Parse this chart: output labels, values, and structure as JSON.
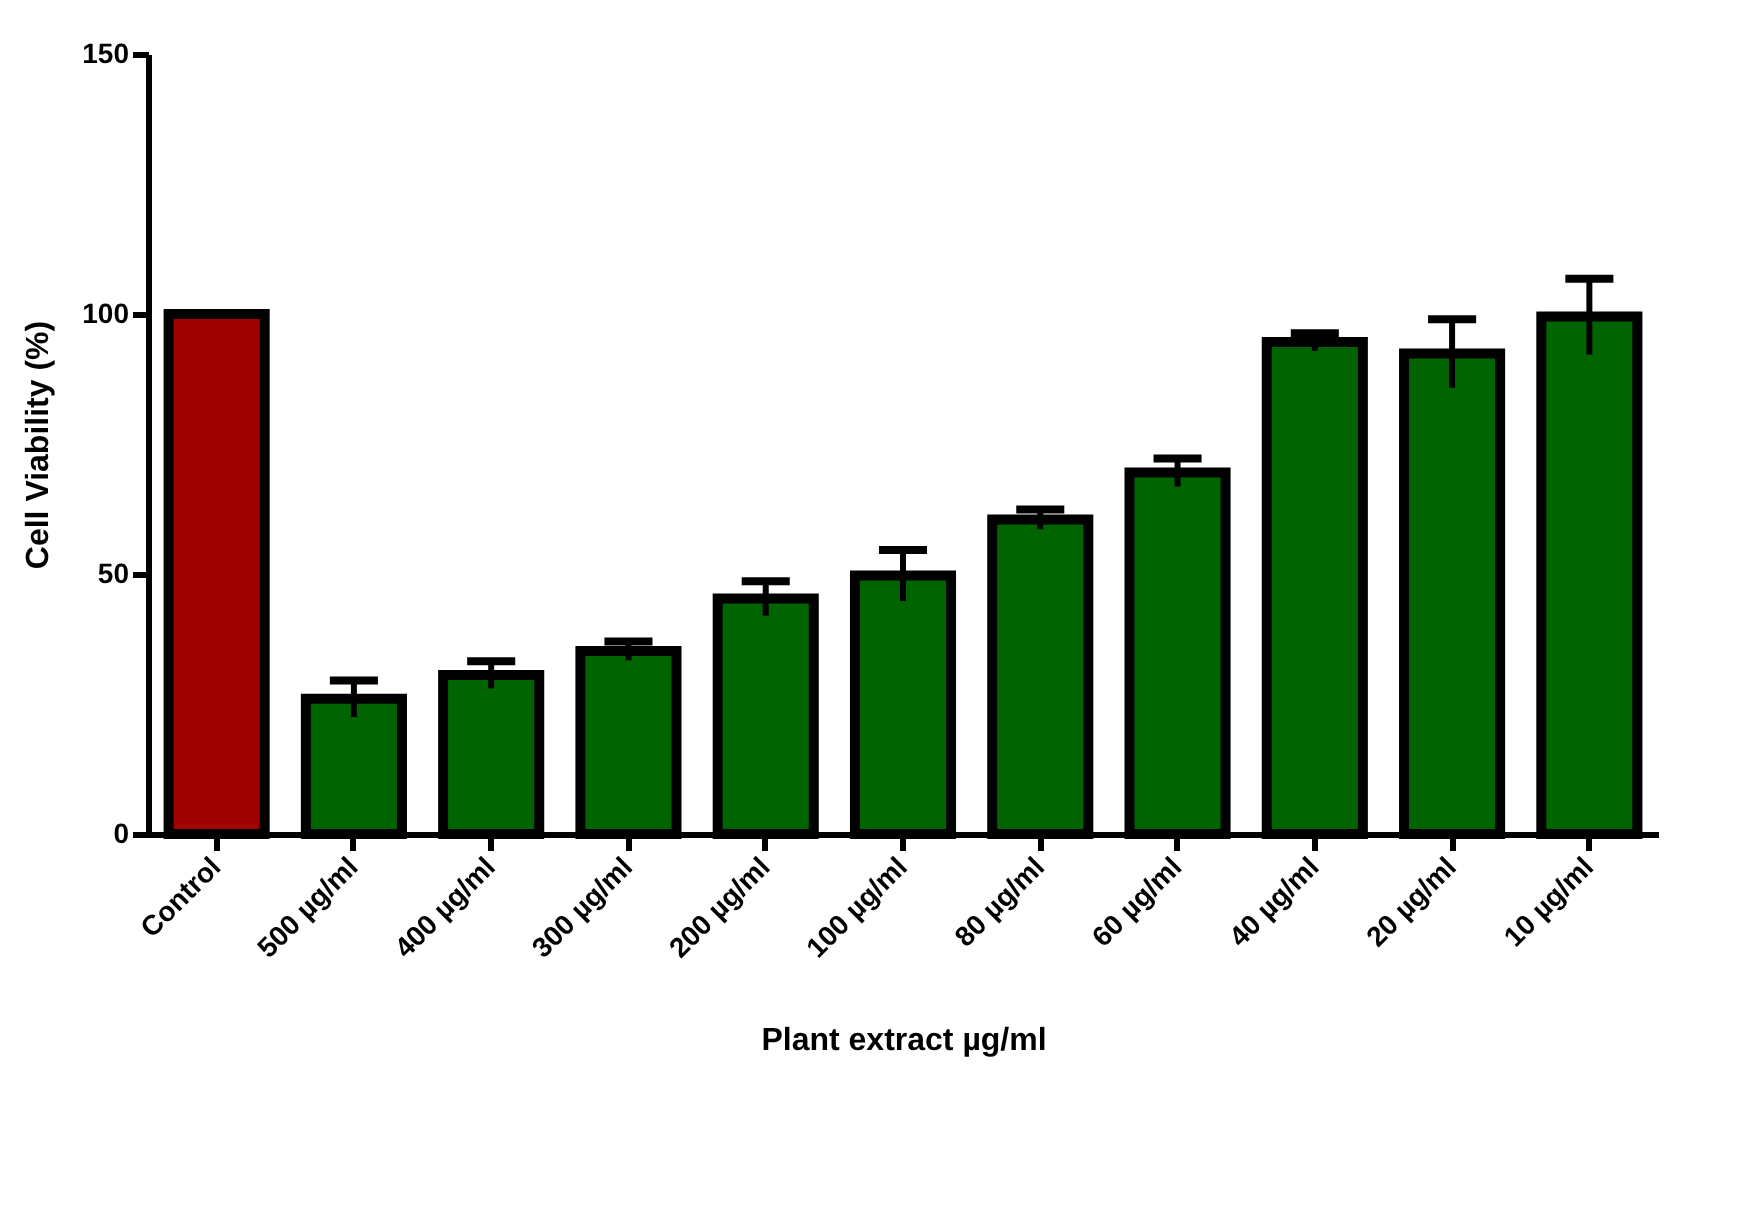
{
  "chart_data": {
    "type": "bar",
    "xlabel": "Plant extract µg/ml",
    "ylabel": "Cell Viability (%)",
    "categories": [
      "Control",
      "500 µg/ml",
      "400 µg/ml",
      "300 µg/ml",
      "200 µg/ml",
      "100 µg/ml",
      "80 µg/ml",
      "60 µg/ml",
      "40 µg/ml",
      "20 µg/ml",
      "10 µg/ml"
    ],
    "values": [
      100,
      26,
      30.6,
      35.2,
      45.3,
      49.7,
      60.5,
      69.5,
      94.6,
      92.4,
      99.5
    ],
    "errors": [
      null,
      3.5,
      2.6,
      1.8,
      3.3,
      4.9,
      1.9,
      2.7,
      1.7,
      6.6,
      7.3
    ],
    "colors": [
      "#a00000",
      "#006400",
      "#006400",
      "#006400",
      "#006400",
      "#006400",
      "#006400",
      "#006400",
      "#006400",
      "#006400",
      "#006400"
    ],
    "ylim": [
      0,
      150
    ],
    "yticks": [
      0,
      50,
      100,
      150
    ],
    "grid": false,
    "legend": false
  }
}
